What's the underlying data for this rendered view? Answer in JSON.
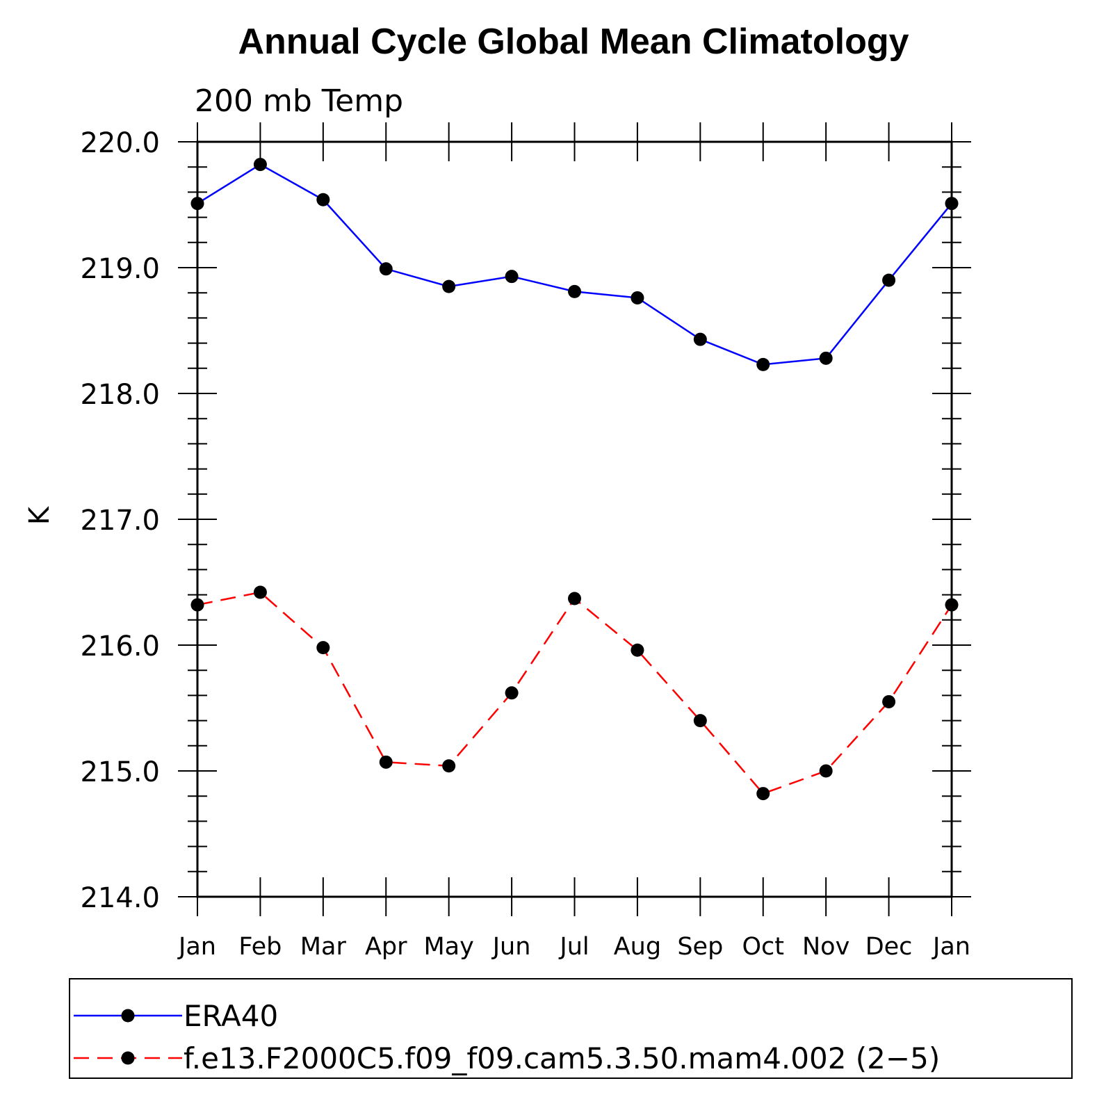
{
  "chart_data": {
    "type": "line",
    "title": "Annual Cycle Global Mean Climatology",
    "subtitle": "200 mb Temp",
    "xlabel": "",
    "ylabel": "K",
    "categories": [
      "Jan",
      "Feb",
      "Mar",
      "Apr",
      "May",
      "Jun",
      "Jul",
      "Aug",
      "Sep",
      "Oct",
      "Nov",
      "Dec",
      "Jan"
    ],
    "ylim": [
      214.0,
      220.0
    ],
    "yticks": [
      "220.0",
      "219.0",
      "218.0",
      "217.0",
      "216.0",
      "215.0",
      "214.0"
    ],
    "ytick_values": [
      220.0,
      219.0,
      218.0,
      217.0,
      216.0,
      215.0,
      214.0
    ],
    "y_minor_step": 0.2,
    "legend_position": "bottom",
    "series": [
      {
        "name": "ERA40",
        "color": "#0000ff",
        "dash": "solid",
        "marker": "circle",
        "values": [
          219.51,
          219.82,
          219.54,
          218.99,
          218.85,
          218.93,
          218.81,
          218.76,
          218.43,
          218.23,
          218.28,
          218.9,
          219.51
        ]
      },
      {
        "name": "f.e13.F2000C5.f09_f09.cam5.3.50.mam4.002 (2−5)",
        "color": "#ff0000",
        "dash": "dashed",
        "marker": "circle",
        "values": [
          216.32,
          216.42,
          215.98,
          215.07,
          215.04,
          215.62,
          216.37,
          215.96,
          215.4,
          214.82,
          215.0,
          215.55,
          216.32
        ]
      }
    ]
  }
}
